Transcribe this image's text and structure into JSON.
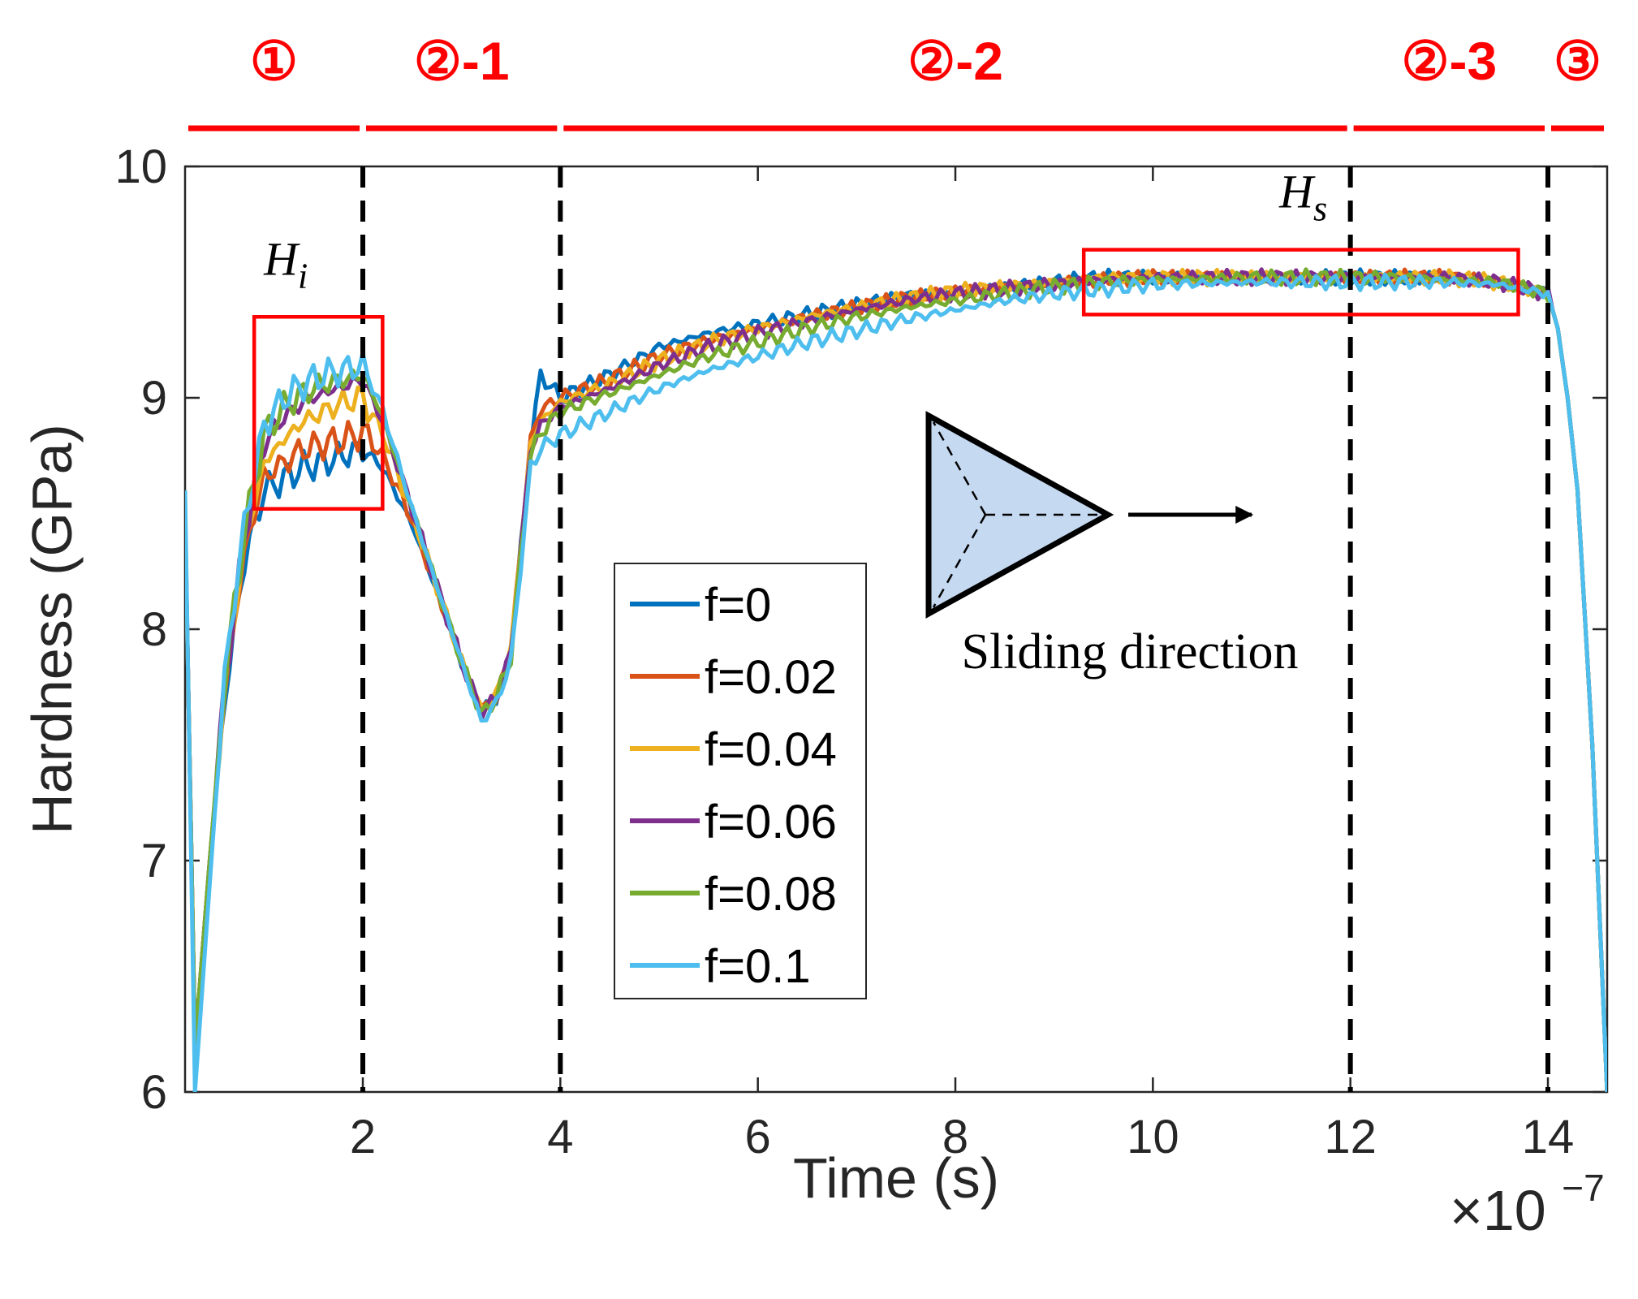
{
  "chart_data": {
    "type": "line",
    "xlabel": "Time (s)",
    "ylabel": "Hardness (GPa)",
    "x_multiplier_base": "×10",
    "x_multiplier_exp": "−7",
    "xlim": [
      0.2,
      14.6
    ],
    "ylim": [
      6,
      10
    ],
    "xticks": [
      2,
      4,
      6,
      8,
      10,
      12,
      14
    ],
    "yticks": [
      6,
      7,
      8,
      9,
      10
    ],
    "phase_boundaries": [
      2,
      4,
      12,
      14
    ],
    "phases": [
      {
        "label": "①",
        "start": 0.2,
        "end": 2
      },
      {
        "label": "②-1",
        "start": 2,
        "end": 4
      },
      {
        "label": "②-2",
        "start": 4,
        "end": 12
      },
      {
        "label": "②-3",
        "start": 12,
        "end": 14
      },
      {
        "label": "③",
        "start": 14,
        "end": 14.6
      }
    ],
    "highlight_regions": [
      {
        "name": "Hi",
        "label_base": "H",
        "label_sub": "i",
        "x_range": [
          0.9,
          2.2
        ],
        "y_range": [
          8.52,
          9.35
        ]
      },
      {
        "name": "Hs",
        "label_base": "H",
        "label_sub": "s",
        "x_range": [
          9.3,
          13.7
        ],
        "y_range": [
          9.36,
          9.64
        ]
      }
    ],
    "annotation": "Sliding direction",
    "series": [
      {
        "name": "f=0",
        "color": "#0072BD",
        "x": [
          0.2,
          0.3,
          0.45,
          0.6,
          0.8,
          1.0,
          1.2,
          1.4,
          1.6,
          1.8,
          2.0,
          2.2,
          2.5,
          2.8,
          3.0,
          3.2,
          3.35,
          3.5,
          3.7,
          3.8,
          4.0,
          4.5,
          5.0,
          5.5,
          6.0,
          6.5,
          7.0,
          7.5,
          8.0,
          8.5,
          9.0,
          9.5,
          10.0,
          11.0,
          12.0,
          12.5,
          13.0,
          13.5,
          14.0,
          14.1,
          14.2,
          14.3,
          14.45,
          14.6
        ],
        "y": [
          8.5,
          6.2,
          7.0,
          7.7,
          8.3,
          8.6,
          8.65,
          8.7,
          8.72,
          8.75,
          8.78,
          8.7,
          8.45,
          8.1,
          7.85,
          7.65,
          7.7,
          7.9,
          8.8,
          9.1,
          9.0,
          9.1,
          9.22,
          9.28,
          9.32,
          9.36,
          9.4,
          9.44,
          9.46,
          9.48,
          9.5,
          9.52,
          9.52,
          9.52,
          9.52,
          9.52,
          9.52,
          9.5,
          9.45,
          9.3,
          9.0,
          8.6,
          7.5,
          6.0
        ]
      },
      {
        "name": "f=0.02",
        "color": "#D95319",
        "x": [
          0.2,
          0.3,
          0.45,
          0.6,
          0.8,
          1.0,
          1.2,
          1.4,
          1.6,
          1.8,
          2.0,
          2.2,
          2.5,
          2.8,
          3.0,
          3.2,
          3.35,
          3.5,
          3.7,
          3.8,
          4.0,
          4.5,
          5.0,
          5.5,
          6.0,
          6.5,
          7.0,
          7.5,
          8.0,
          8.5,
          9.0,
          9.5,
          10.0,
          11.0,
          12.0,
          12.5,
          13.0,
          13.5,
          14.0,
          14.1,
          14.2,
          14.3,
          14.45,
          14.6
        ],
        "y": [
          8.5,
          6.2,
          7.0,
          7.72,
          8.33,
          8.66,
          8.72,
          8.78,
          8.8,
          8.82,
          8.85,
          8.75,
          8.47,
          8.1,
          7.86,
          7.66,
          7.72,
          7.92,
          8.82,
          8.95,
          9.0,
          9.08,
          9.18,
          9.25,
          9.3,
          9.35,
          9.39,
          9.43,
          9.46,
          9.48,
          9.5,
          9.51,
          9.52,
          9.52,
          9.52,
          9.52,
          9.52,
          9.5,
          9.45,
          9.3,
          9.0,
          8.6,
          7.5,
          6.0
        ]
      },
      {
        "name": "f=0.04",
        "color": "#EDB120",
        "x": [
          0.2,
          0.3,
          0.45,
          0.6,
          0.8,
          1.0,
          1.2,
          1.4,
          1.6,
          1.8,
          2.0,
          2.2,
          2.5,
          2.8,
          3.0,
          3.2,
          3.35,
          3.5,
          3.7,
          3.8,
          4.0,
          4.5,
          5.0,
          5.5,
          6.0,
          6.5,
          7.0,
          7.5,
          8.0,
          8.5,
          9.0,
          9.5,
          10.0,
          11.0,
          12.0,
          12.5,
          13.0,
          13.5,
          14.0,
          14.1,
          14.2,
          14.3,
          14.45,
          14.6
        ],
        "y": [
          8.5,
          6.2,
          7.0,
          7.74,
          8.36,
          8.72,
          8.82,
          8.9,
          8.94,
          8.98,
          9.0,
          8.85,
          8.5,
          8.12,
          7.86,
          7.65,
          7.72,
          7.92,
          8.8,
          8.9,
          8.98,
          9.06,
          9.16,
          9.24,
          9.3,
          9.35,
          9.39,
          9.43,
          9.46,
          9.48,
          9.5,
          9.52,
          9.52,
          9.52,
          9.52,
          9.52,
          9.52,
          9.5,
          9.45,
          9.3,
          9.0,
          8.6,
          7.5,
          6.0
        ]
      },
      {
        "name": "f=0.06",
        "color": "#7E2F8E",
        "x": [
          0.2,
          0.3,
          0.45,
          0.6,
          0.8,
          1.0,
          1.2,
          1.4,
          1.6,
          1.8,
          2.0,
          2.2,
          2.5,
          2.8,
          3.0,
          3.2,
          3.35,
          3.5,
          3.7,
          3.8,
          4.0,
          4.5,
          5.0,
          5.5,
          6.0,
          6.5,
          7.0,
          7.5,
          8.0,
          8.5,
          9.0,
          9.5,
          10.0,
          11.0,
          12.0,
          12.5,
          13.0,
          13.5,
          14.0,
          14.1,
          14.2,
          14.3,
          14.45,
          14.6
        ],
        "y": [
          8.5,
          6.2,
          7.0,
          7.76,
          8.4,
          8.8,
          8.92,
          8.98,
          9.02,
          9.05,
          9.08,
          8.9,
          8.52,
          8.12,
          7.86,
          7.64,
          7.7,
          7.9,
          8.78,
          8.88,
          8.96,
          9.04,
          9.14,
          9.22,
          9.28,
          9.33,
          9.38,
          9.42,
          9.45,
          9.47,
          9.49,
          9.51,
          9.52,
          9.52,
          9.52,
          9.52,
          9.52,
          9.5,
          9.45,
          9.3,
          9.0,
          8.6,
          7.5,
          6.0
        ]
      },
      {
        "name": "f=0.08",
        "color": "#77AC30",
        "x": [
          0.2,
          0.3,
          0.45,
          0.6,
          0.8,
          1.0,
          1.2,
          1.4,
          1.6,
          1.8,
          2.0,
          2.2,
          2.5,
          2.8,
          3.0,
          3.2,
          3.35,
          3.5,
          3.7,
          3.8,
          4.0,
          4.5,
          5.0,
          5.5,
          6.0,
          6.5,
          7.0,
          7.5,
          8.0,
          8.5,
          9.0,
          9.5,
          10.0,
          11.0,
          12.0,
          12.5,
          13.0,
          13.5,
          14.0,
          14.1,
          14.2,
          14.3,
          14.45,
          14.6
        ],
        "y": [
          8.5,
          6.2,
          7.0,
          7.78,
          8.42,
          8.84,
          8.96,
          9.02,
          9.06,
          9.08,
          9.1,
          8.92,
          8.52,
          8.12,
          7.86,
          7.63,
          7.7,
          7.88,
          8.75,
          8.85,
          8.94,
          9.02,
          9.1,
          9.18,
          9.24,
          9.3,
          9.35,
          9.39,
          9.42,
          9.45,
          9.48,
          9.5,
          9.51,
          9.52,
          9.52,
          9.52,
          9.51,
          9.5,
          9.45,
          9.3,
          9.0,
          8.6,
          7.5,
          6.0
        ]
      },
      {
        "name": "f=0.1",
        "color": "#4DBEEE",
        "x": [
          0.2,
          0.3,
          0.45,
          0.6,
          0.8,
          1.0,
          1.2,
          1.4,
          1.6,
          1.8,
          2.0,
          2.2,
          2.5,
          2.8,
          3.0,
          3.2,
          3.35,
          3.5,
          3.7,
          3.8,
          4.0,
          4.5,
          5.0,
          5.5,
          6.0,
          6.5,
          7.0,
          7.5,
          8.0,
          8.5,
          9.0,
          9.5,
          10.0,
          11.0,
          12.0,
          12.5,
          13.0,
          13.5,
          14.0,
          14.1,
          14.2,
          14.3,
          14.45,
          14.6
        ],
        "y": [
          8.6,
          6.0,
          6.9,
          7.8,
          8.45,
          8.88,
          9.0,
          9.06,
          9.1,
          9.12,
          9.14,
          8.95,
          8.52,
          8.12,
          7.86,
          7.6,
          7.68,
          7.86,
          8.7,
          8.78,
          8.84,
          8.94,
          9.04,
          9.12,
          9.18,
          9.24,
          9.29,
          9.34,
          9.38,
          9.42,
          9.45,
          9.47,
          9.49,
          9.5,
          9.5,
          9.5,
          9.5,
          9.49,
          9.45,
          9.3,
          9.0,
          8.6,
          7.5,
          6.0
        ]
      }
    ]
  }
}
